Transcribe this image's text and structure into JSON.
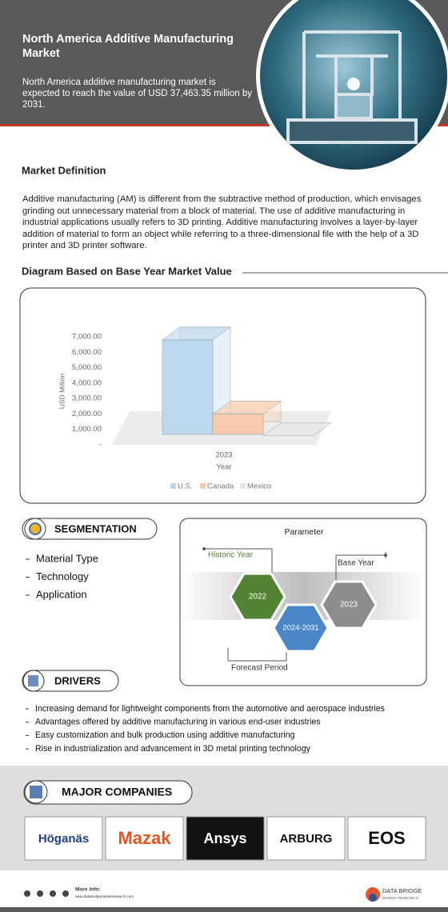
{
  "header": {
    "title": "North America Additive Manufacturing Market",
    "summary": "North America additive manufacturing market is expected to reach the value of USD 37,463.35 million by 2031."
  },
  "definition": {
    "heading": "Market Definition",
    "text": "Additive manufacturing (AM) is different from the subtractive method of production, which envisages grinding out unnecessary material from a block of material. The use of additive manufacturing in industrial applications usually refers to 3D printing. Additive manufacturing involves a layer-by-layer addition of material to form an object while referring to a three-dimensional file with the help of a 3D printer and 3D printer software."
  },
  "chart_section": {
    "heading": "Diagram Based on Base Year Market Value"
  },
  "chart_data": {
    "type": "bar",
    "categories": [
      "2023"
    ],
    "ylabel": "USD Million",
    "xlabel": "Year",
    "series": [
      {
        "name": "U.S.",
        "color": "#bdd7ee",
        "values": [
          6900
        ]
      },
      {
        "name": "Canada",
        "color": "#f8cbad",
        "values": [
          2100
        ]
      },
      {
        "name": "Mexico",
        "color": "#e7e6e6",
        "values": [
          700
        ]
      }
    ],
    "ylim": [
      0,
      7000
    ],
    "yticks": [
      {
        "value": 0,
        "label": "-"
      },
      {
        "value": 1000,
        "label": "1,000.00"
      },
      {
        "value": 2000,
        "label": "2,000.00"
      },
      {
        "value": 3000,
        "label": "3,000.00"
      },
      {
        "value": 4000,
        "label": "4,000.00"
      },
      {
        "value": 5000,
        "label": "5,000.00"
      },
      {
        "value": 6000,
        "label": "6,000.00"
      },
      {
        "value": 7000,
        "label": "7,000.00"
      }
    ],
    "grid": false,
    "legend": "bottom"
  },
  "segmentation": {
    "heading": "SEGMENTATION",
    "items": [
      "Material Type",
      "Technology",
      "Application"
    ]
  },
  "parameter": {
    "title": "Parameter",
    "historic_label": "Historic Year",
    "historic_value": "2022",
    "base_label": "Base Year",
    "base_value": "2023",
    "forecast_label": "Forecast Period",
    "forecast_value": "2024-2031"
  },
  "drivers": {
    "heading": "DRIVERS",
    "items": [
      "Increasing demand for lightweight components from the automotive and aerospace industries",
      "Advantages offered by additive manufacturing in various end-user industries",
      "Easy customization and bulk production using additive manufacturing",
      "Rise in industrialization and advancement in 3D metal printing technology"
    ]
  },
  "companies": {
    "heading": "MAJOR COMPANIES",
    "logos": [
      "Höganäs",
      "Mazak",
      "Ansys",
      "ARBURG",
      "EOS"
    ]
  },
  "footer": {
    "more_info": "More info:",
    "url": "www.databridgemarketresearch.com",
    "brand": "DATA BRIDGE",
    "brand_sub": "MARKET RESEARCH"
  }
}
